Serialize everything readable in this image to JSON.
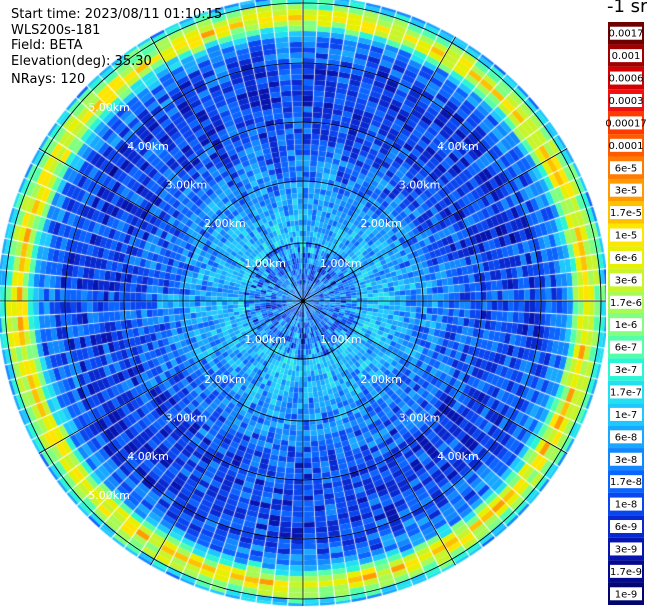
{
  "header": {
    "start_time": "Start time: 2023/08/11 01:10:15",
    "instrument": "WLS200s-181",
    "field": "Field: BETA",
    "elevation": "Elevation(deg): 35.30",
    "nrays": "NRays: 120"
  },
  "colorbar": {
    "unit_label": "-1 sr",
    "ticks": [
      "0.0017",
      "0.001",
      "0.0006",
      "0.0003",
      "0.00017",
      "0.0001",
      "6e-5",
      "3e-5",
      "1.7e-5",
      "1e-5",
      "6e-6",
      "3e-6",
      "1.7e-6",
      "1e-6",
      "6e-7",
      "3e-7",
      "1.7e-7",
      "1e-7",
      "6e-8",
      "3e-8",
      "1.7e-8",
      "1e-8",
      "6e-9",
      "3e-9",
      "1.7e-9",
      "1e-9"
    ],
    "colors": [
      "#6e0000",
      "#a00000",
      "#d20000",
      "#f01010",
      "#ff3a00",
      "#ff5a00",
      "#ff7a00",
      "#ff9b00",
      "#ffc000",
      "#ffe600",
      "#e8f000",
      "#c8f52a",
      "#a8fa55",
      "#80ff80",
      "#55ffaa",
      "#2af5d4",
      "#22e0f0",
      "#1ec8ff",
      "#18a8ff",
      "#1288ff",
      "#0c64ff",
      "#0a46f0",
      "#0828d0",
      "#0614b0",
      "#040a90",
      "#02056e"
    ]
  },
  "chart_data": {
    "type": "heatmap",
    "projection": "polar (PPI scan)",
    "field": "BETA",
    "elevation_deg": 35.3,
    "n_rays": 120,
    "range_rings_km": [
      1,
      2,
      3,
      4,
      5
    ],
    "ring_labels": [
      "1.00km",
      "2.00km",
      "3.00km",
      "4.00km",
      "5.00km"
    ],
    "max_range_km": 5.3,
    "radial_profile_log10_beta": [
      {
        "range_km": 0.0,
        "value": -7.2
      },
      {
        "range_km": 0.7,
        "value": -7.3
      },
      {
        "range_km": 1.0,
        "value": -7.0
      },
      {
        "range_km": 2.0,
        "value": -7.4
      },
      {
        "range_km": 3.0,
        "value": -7.9
      },
      {
        "range_km": 4.0,
        "value": -8.0
      },
      {
        "range_km": 4.6,
        "value": -7.5
      },
      {
        "range_km": 4.9,
        "value": -5.0
      },
      {
        "range_km": 5.1,
        "value": -5.8
      },
      {
        "range_km": 5.3,
        "value": -7.2
      }
    ]
  }
}
